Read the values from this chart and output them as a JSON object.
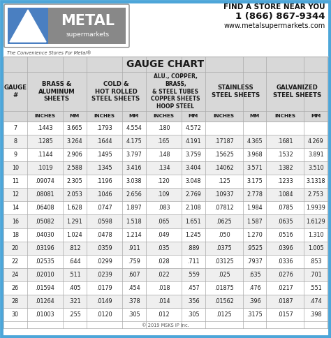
{
  "title": "GAUGE CHART",
  "tagline": "The Convenience Stores For Metal®",
  "contact_line1": "FIND A STORE NEAR YOU",
  "contact_line2": "1 (866) 867-9344",
  "contact_line3": "www.metalsupermarkets.com",
  "copyright": "© 2019 MSKS IP Inc.",
  "gauges": [
    7,
    8,
    9,
    10,
    11,
    12,
    14,
    16,
    18,
    20,
    22,
    24,
    26,
    28,
    30
  ],
  "brass_in": [
    ".1443",
    ".1285",
    ".1144",
    ".1019",
    ".09074",
    ".08081",
    ".06408",
    ".05082",
    ".04030",
    ".03196",
    ".02535",
    ".02010",
    ".01594",
    ".01264",
    ".01003"
  ],
  "brass_mm": [
    "3.665",
    "3.264",
    "2.906",
    "2.588",
    "2.305",
    "2.053",
    "1.628",
    "1.291",
    "1.024",
    ".812",
    ".644",
    ".511",
    ".405",
    ".321",
    ".255"
  ],
  "cold_in": [
    ".1793",
    ".1644",
    ".1495",
    ".1345",
    ".1196",
    ".1046",
    ".0747",
    ".0598",
    ".0478",
    ".0359",
    ".0299",
    ".0239",
    ".0179",
    ".0149",
    ".0120"
  ],
  "cold_mm": [
    "4.554",
    "4.175",
    "3.797",
    "3.416",
    "3.038",
    "2.656",
    "1.897",
    "1.518",
    "1.214",
    ".911",
    ".759",
    ".607",
    ".454",
    ".378",
    ".305"
  ],
  "alu_in": [
    ".180",
    ".165",
    ".148",
    ".134",
    ".120",
    ".109",
    ".083",
    ".065",
    ".049",
    ".035",
    ".028",
    ".022",
    ".018",
    ".014",
    ".012"
  ],
  "alu_mm": [
    "4.572",
    "4.191",
    "3.759",
    "3.404",
    "3.048",
    "2.769",
    "2.108",
    "1.651",
    "1.245",
    ".889",
    ".711",
    ".559",
    ".457",
    ".356",
    ".305"
  ],
  "ss_in": [
    "",
    ".17187",
    ".15625",
    ".14062",
    ".125",
    ".10937",
    ".07812",
    ".0625",
    ".050",
    ".0375",
    ".03125",
    ".025",
    ".01875",
    ".01562",
    ".0125"
  ],
  "ss_mm": [
    "",
    "4.365",
    "3.968",
    "3.571",
    "3.175",
    "2.778",
    "1.984",
    "1.587",
    "1.270",
    ".9525",
    ".7937",
    ".635",
    ".476",
    ".396",
    ".3175"
  ],
  "galv_in": [
    "",
    ".1681",
    ".1532",
    ".1382",
    ".1233",
    ".1084",
    ".0785",
    ".0635",
    ".0516",
    ".0396",
    ".0336",
    ".0276",
    ".0217",
    ".0187",
    ".0157"
  ],
  "galv_mm": [
    "",
    "4.269",
    "3.891",
    "3.510",
    "3.1318",
    "2.753",
    "1.9939",
    "1.6129",
    "1.310",
    "1.005",
    ".853",
    ".701",
    ".551",
    ".474",
    ".398"
  ],
  "border_color": "#4da6d9",
  "header_bg": "#d8d8d8",
  "subhdr_bg": "#e0e0e0",
  "row_even": "#ffffff",
  "row_odd": "#efefef",
  "text_color": "#1a1a1a",
  "logo_box_bg": "#888888",
  "logo_tri_blue": "#4472c4",
  "logo_text_bg": "#888888"
}
